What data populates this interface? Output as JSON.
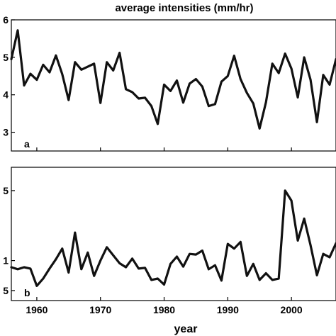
{
  "chart_data": [
    {
      "type": "line",
      "title": "average intensities (mm/hr)",
      "panel_label": "a",
      "x": [
        1956,
        1957,
        1958,
        1959,
        1960,
        1961,
        1962,
        1963,
        1964,
        1965,
        1966,
        1967,
        1968,
        1969,
        1970,
        1971,
        1972,
        1973,
        1974,
        1975,
        1976,
        1977,
        1978,
        1979,
        1980,
        1981,
        1982,
        1983,
        1984,
        1985,
        1986,
        1987,
        1988,
        1989,
        1990,
        1991,
        1992,
        1993,
        1994,
        1995,
        1996,
        1997,
        1998,
        1999,
        2000,
        2001,
        2002,
        2003,
        2004,
        2005,
        2006,
        2007
      ],
      "values": [
        4.95,
        5.72,
        4.25,
        4.56,
        4.4,
        4.8,
        4.6,
        5.05,
        4.55,
        3.86,
        4.87,
        4.67,
        4.75,
        4.83,
        3.78,
        4.87,
        4.65,
        5.12,
        4.15,
        4.07,
        3.9,
        3.92,
        3.7,
        3.22,
        4.27,
        4.1,
        4.38,
        3.79,
        4.3,
        4.42,
        4.22,
        3.7,
        3.75,
        4.35,
        4.5,
        5.04,
        4.42,
        4.05,
        3.77,
        3.1,
        3.8,
        4.83,
        4.58,
        5.1,
        4.7,
        3.93,
        5.0,
        4.4,
        3.27,
        4.53,
        4.27,
        4.95
      ],
      "xlim": [
        1956,
        2007
      ],
      "ylim": [
        2.5,
        6
      ],
      "yticks": [
        "3",
        "4",
        "5",
        "6"
      ],
      "xticks": []
    },
    {
      "type": "line",
      "panel_label": "b",
      "xlabel": "year",
      "x": [
        1956,
        1957,
        1958,
        1959,
        1960,
        1961,
        1962,
        1963,
        1964,
        1965,
        1966,
        1967,
        1968,
        1969,
        1970,
        1971,
        1972,
        1973,
        1974,
        1975,
        1976,
        1977,
        1978,
        1979,
        1980,
        1981,
        1982,
        1983,
        1984,
        1985,
        1986,
        1987,
        1988,
        1989,
        1990,
        1991,
        1992,
        1993,
        1994,
        1995,
        1996,
        1997,
        1998,
        1999,
        2000,
        2001,
        2002,
        2003,
        2004,
        2005,
        2006,
        2007
      ],
      "values": [
        0.9,
        0.87,
        0.9,
        0.88,
        0.62,
        0.73,
        0.88,
        1.02,
        1.18,
        0.82,
        1.42,
        0.87,
        1.12,
        0.77,
        1.0,
        1.2,
        1.08,
        0.96,
        0.9,
        1.03,
        0.88,
        0.89,
        0.71,
        0.73,
        0.64,
        0.95,
        1.06,
        0.91,
        1.1,
        1.09,
        1.15,
        0.87,
        0.93,
        0.7,
        1.25,
        1.18,
        1.28,
        0.77,
        0.95,
        0.71,
        0.81,
        0.71,
        0.73,
        2.05,
        1.9,
        1.3,
        1.63,
        1.23,
        0.78,
        1.1,
        1.05,
        1.26
      ],
      "xlim": [
        1956,
        2007
      ],
      "ylim": [
        0.4,
        2.4
      ],
      "yticks": [
        "5",
        "1",
        "5"
      ],
      "xticks": [
        "1960",
        "1970",
        "1980",
        "1990",
        "2000"
      ]
    }
  ]
}
